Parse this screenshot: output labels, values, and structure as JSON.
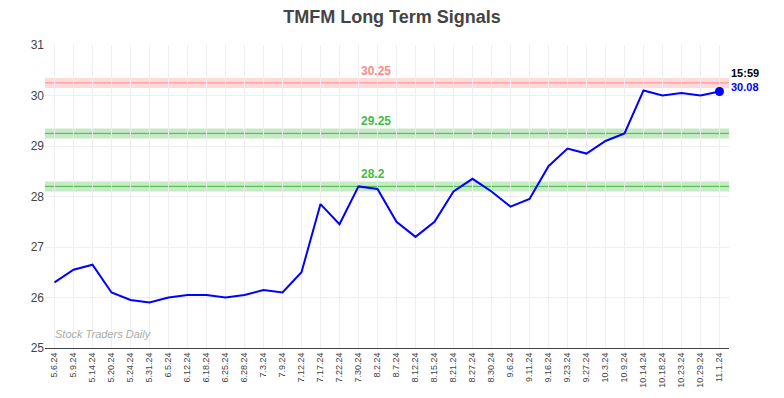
{
  "chart_data": {
    "type": "line",
    "title": "TMFM Long Term Signals",
    "categories": [
      "5.6.24",
      "5.9.24",
      "5.14.24",
      "5.20.24",
      "5.24.24",
      "5.31.24",
      "6.5.24",
      "6.12.24",
      "6.18.24",
      "6.25.24",
      "6.28.24",
      "7.3.24",
      "7.9.24",
      "7.12.24",
      "7.17.24",
      "7.22.24",
      "7.30.24",
      "8.2.24",
      "8.7.24",
      "8.12.24",
      "8.15.24",
      "8.21.24",
      "8.27.24",
      "8.30.24",
      "9.6.24",
      "9.11.24",
      "9.16.24",
      "9.23.24",
      "9.27.24",
      "10.3.24",
      "10.9.24",
      "10.14.24",
      "10.18.24",
      "10.23.24",
      "10.29.24",
      "11.1.24"
    ],
    "values": [
      26.3,
      26.55,
      26.65,
      26.1,
      25.95,
      25.9,
      26.0,
      26.05,
      26.05,
      26.0,
      26.05,
      26.15,
      26.1,
      26.5,
      27.85,
      27.45,
      28.2,
      28.15,
      27.5,
      27.2,
      27.5,
      28.1,
      28.35,
      28.1,
      27.8,
      27.95,
      28.6,
      28.95,
      28.85,
      29.1,
      29.25,
      30.1,
      30.0,
      30.05,
      30.0,
      30.08
    ],
    "color": "blue",
    "ylim": [
      25,
      31
    ],
    "yticks": [
      25,
      26,
      27,
      28,
      29,
      30,
      31
    ],
    "grid": true,
    "hlines": [
      {
        "value": 30.25,
        "label": "30.25",
        "color": "#ff8888"
      },
      {
        "value": 29.25,
        "label": "29.25",
        "color": "#44bb44"
      },
      {
        "value": 28.2,
        "label": "28.2",
        "color": "#44bb44"
      }
    ],
    "annotations": [
      {
        "text": "15:59",
        "color": "black"
      },
      {
        "text": "30.08",
        "color": "blue"
      }
    ],
    "watermark": "Stock Traders Daily"
  }
}
